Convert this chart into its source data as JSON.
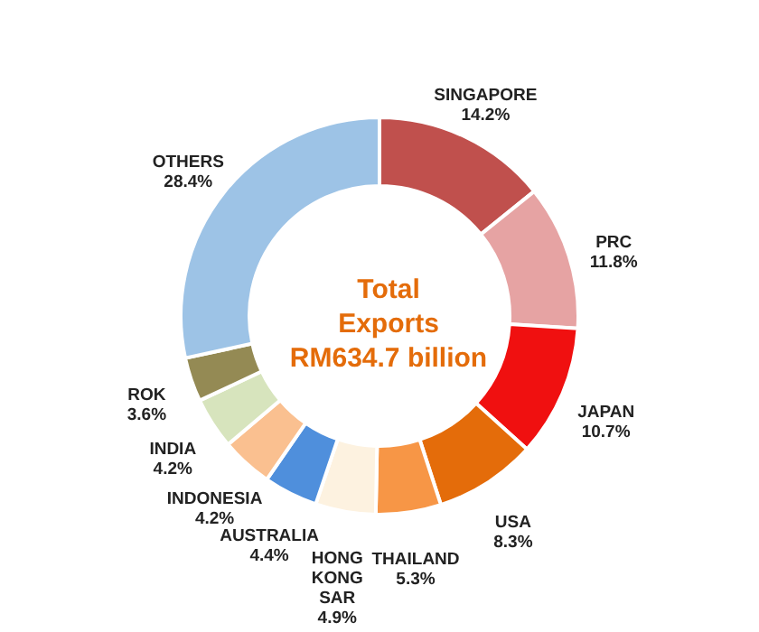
{
  "chart_data": {
    "type": "donut",
    "title": "Total\nExports\nRM634.7 billion",
    "categories": [
      "SINGAPORE",
      "PRC",
      "JAPAN",
      "USA",
      "THAILAND",
      "HONG KONG SAR",
      "AUSTRALIA",
      "INDONESIA",
      "INDIA",
      "ROK",
      "OTHERS"
    ],
    "values": [
      14.2,
      11.8,
      10.7,
      8.3,
      5.3,
      4.9,
      4.4,
      4.2,
      4.2,
      3.6,
      28.4
    ],
    "colors": [
      "#c0504d",
      "#e6a3a3",
      "#f01010",
      "#e46c0a",
      "#f79646",
      "#fdf2e0",
      "#4f8fdc",
      "#fac090",
      "#d7e4bd",
      "#948a54",
      "#9dc3e6"
    ],
    "value_labels": [
      "14.2%",
      "11.8%",
      "10.7%",
      "8.3%",
      "5.3%",
      "4.9%",
      "4.4%",
      "4.2%",
      "4.2%",
      "3.6%",
      "28.4%"
    ]
  }
}
